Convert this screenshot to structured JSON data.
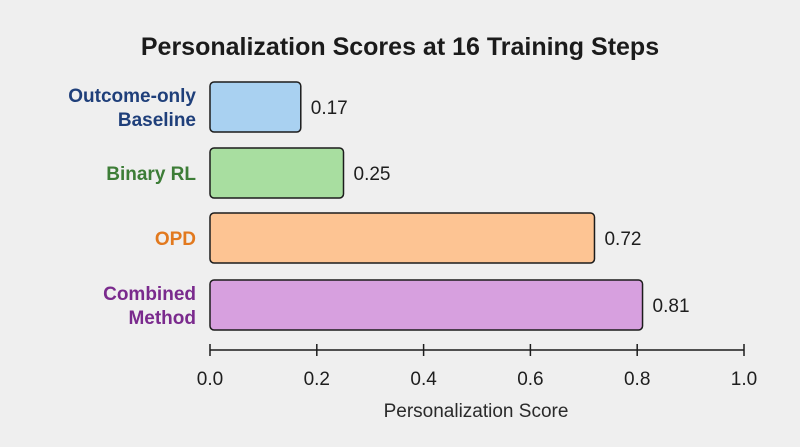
{
  "chart_data": {
    "type": "bar",
    "orientation": "horizontal",
    "title": "Personalization Scores at 16 Training Steps",
    "xlabel": "Personalization Score",
    "ylabel": "",
    "xlim": [
      0.0,
      1.0
    ],
    "ticks": [
      0.0,
      0.2,
      0.4,
      0.6,
      0.8,
      1.0
    ],
    "tick_labels": [
      "0.0",
      "0.2",
      "0.4",
      "0.6",
      "0.8",
      "1.0"
    ],
    "grid": false,
    "bars": [
      {
        "label_lines": [
          "Outcome-only",
          "Baseline"
        ],
        "value": 0.17,
        "value_label": "0.17",
        "fill": "#a9d1f1",
        "label_color": "#1f3f7a"
      },
      {
        "label_lines": [
          "Binary RL"
        ],
        "value": 0.25,
        "value_label": "0.25",
        "fill": "#a8dea0",
        "label_color": "#3d7d37"
      },
      {
        "label_lines": [
          "OPD"
        ],
        "value": 0.72,
        "value_label": "0.72",
        "fill": "#fdc493",
        "label_color": "#e2791e"
      },
      {
        "label_lines": [
          "Combined",
          "Method"
        ],
        "value": 0.81,
        "value_label": "0.81",
        "fill": "#d7a0df",
        "label_color": "#7a2a8d"
      }
    ]
  }
}
